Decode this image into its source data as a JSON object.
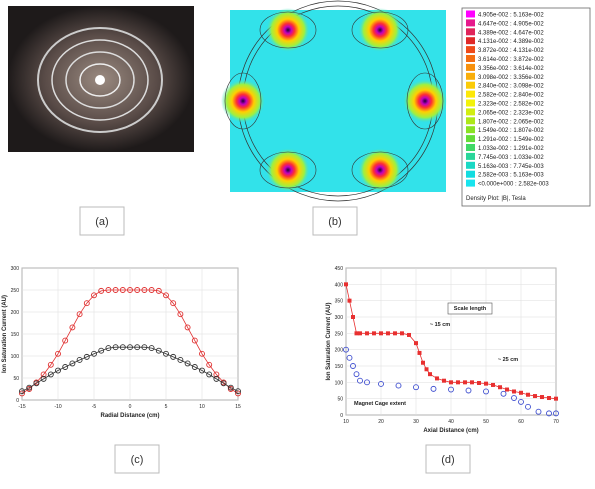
{
  "figure": {
    "captions": [
      "(a)",
      "(b)",
      "(c)",
      "(d)"
    ],
    "field_legend": {
      "title": "Density Plot: |B|, Tesla",
      "rows": [
        {
          "label": "4.905e-002 : 5.163e-002",
          "color": "#ff00ff"
        },
        {
          "label": "4.647e-002 : 4.905e-002",
          "color": "#e6198c"
        },
        {
          "label": "4.389e-002 : 4.647e-002",
          "color": "#e0245a"
        },
        {
          "label": "4.131e-002 : 4.389e-002",
          "color": "#e02828"
        },
        {
          "label": "3.872e-002 : 4.131e-002",
          "color": "#ef4a1a"
        },
        {
          "label": "3.614e-002 : 3.872e-002",
          "color": "#f46d12"
        },
        {
          "label": "3.356e-002 : 3.614e-002",
          "color": "#f7900d"
        },
        {
          "label": "3.098e-002 : 3.356e-002",
          "color": "#f9ae0a"
        },
        {
          "label": "2.840e-002 : 3.098e-002",
          "color": "#fbcb08"
        },
        {
          "label": "2.582e-002 : 2.840e-002",
          "color": "#fde807"
        },
        {
          "label": "2.323e-002 : 2.582e-002",
          "color": "#f2f20a"
        },
        {
          "label": "2.065e-002 : 2.323e-002",
          "color": "#d2ee10"
        },
        {
          "label": "1.807e-002 : 2.065e-002",
          "color": "#aee818"
        },
        {
          "label": "1.549e-002 : 1.807e-002",
          "color": "#8ae224"
        },
        {
          "label": "1.291e-002 : 1.549e-002",
          "color": "#64dc38"
        },
        {
          "label": "1.033e-002 : 1.291e-002",
          "color": "#40d866"
        },
        {
          "label": "7.745e-003 : 1.033e-002",
          "color": "#2ad69a"
        },
        {
          "label": "5.163e-003 : 7.745e-003",
          "color": "#1ad8c4"
        },
        {
          "label": "2.582e-003 : 5.163e-003",
          "color": "#12dce0"
        },
        {
          "label": "<0.000e+000 : 2.582e-003",
          "color": "#18e4ee"
        }
      ]
    }
  },
  "chart_data": [
    {
      "type": "line",
      "xlabel": "Radial Distance (cm)",
      "ylabel": "Ion Saturation Current (AU)",
      "xlim": [
        -15,
        15
      ],
      "xticks": [
        -15,
        -10,
        -5,
        0,
        5,
        10,
        15
      ],
      "ylim": [
        0,
        300
      ],
      "yticks": [
        0,
        50,
        100,
        150,
        200,
        250,
        300
      ],
      "grid": true,
      "x": [
        -15,
        -14,
        -13,
        -12,
        -11,
        -10,
        -9,
        -8,
        -7,
        -6,
        -5,
        -4,
        -3,
        -2,
        -1,
        0,
        1,
        2,
        3,
        4,
        5,
        6,
        7,
        8,
        9,
        10,
        11,
        12,
        13,
        14,
        15
      ],
      "series": [
        {
          "color": "#e03030",
          "marker": "circle",
          "values": [
            15,
            25,
            40,
            58,
            80,
            105,
            135,
            165,
            195,
            220,
            238,
            248,
            250,
            250,
            250,
            250,
            250,
            250,
            250,
            248,
            238,
            220,
            195,
            165,
            135,
            105,
            80,
            58,
            40,
            25,
            15
          ]
        },
        {
          "color": "#333333",
          "marker": "circle",
          "values": [
            20,
            28,
            38,
            48,
            58,
            67,
            75,
            83,
            91,
            98,
            105,
            112,
            118,
            120,
            120,
            120,
            120,
            120,
            118,
            112,
            105,
            98,
            91,
            83,
            75,
            67,
            58,
            48,
            38,
            28,
            20
          ]
        }
      ]
    },
    {
      "type": "line",
      "xlabel": "Axial Distance (cm)",
      "ylabel": "Ion Saturation Current (AU)",
      "xlim": [
        10,
        70
      ],
      "xticks": [
        10,
        20,
        30,
        40,
        50,
        60,
        70
      ],
      "ylim": [
        0,
        450
      ],
      "yticks": [
        0,
        50,
        100,
        150,
        200,
        250,
        300,
        350,
        400,
        450
      ],
      "grid": true,
      "annotations": [
        "Scale length",
        "~ 15 cm",
        "~ 25 cm",
        "Magnet Cage extent"
      ],
      "series": [
        {
          "color": "#e83030",
          "marker": "square",
          "x": [
            10,
            11,
            12,
            13,
            14,
            16,
            18,
            20,
            22,
            24,
            26,
            28,
            30,
            31,
            32,
            33,
            34,
            36,
            38,
            40,
            42,
            44,
            46,
            48,
            50,
            52,
            54,
            56,
            58,
            60,
            62,
            64,
            66,
            68,
            70
          ],
          "values": [
            400,
            350,
            300,
            250,
            250,
            250,
            250,
            250,
            250,
            250,
            250,
            245,
            220,
            190,
            160,
            140,
            125,
            112,
            105,
            100,
            100,
            100,
            100,
            98,
            96,
            92,
            85,
            78,
            72,
            68,
            62,
            58,
            55,
            52,
            50
          ]
        },
        {
          "color": "#4050d0",
          "marker": "open",
          "x": [
            10,
            11,
            12,
            13,
            14,
            16,
            20,
            25,
            30,
            35,
            40,
            45,
            50,
            55,
            58,
            60,
            62,
            65,
            68,
            70
          ],
          "values": [
            200,
            175,
            150,
            125,
            105,
            100,
            95,
            90,
            85,
            80,
            78,
            75,
            72,
            65,
            52,
            40,
            25,
            10,
            5,
            5
          ]
        }
      ]
    }
  ]
}
